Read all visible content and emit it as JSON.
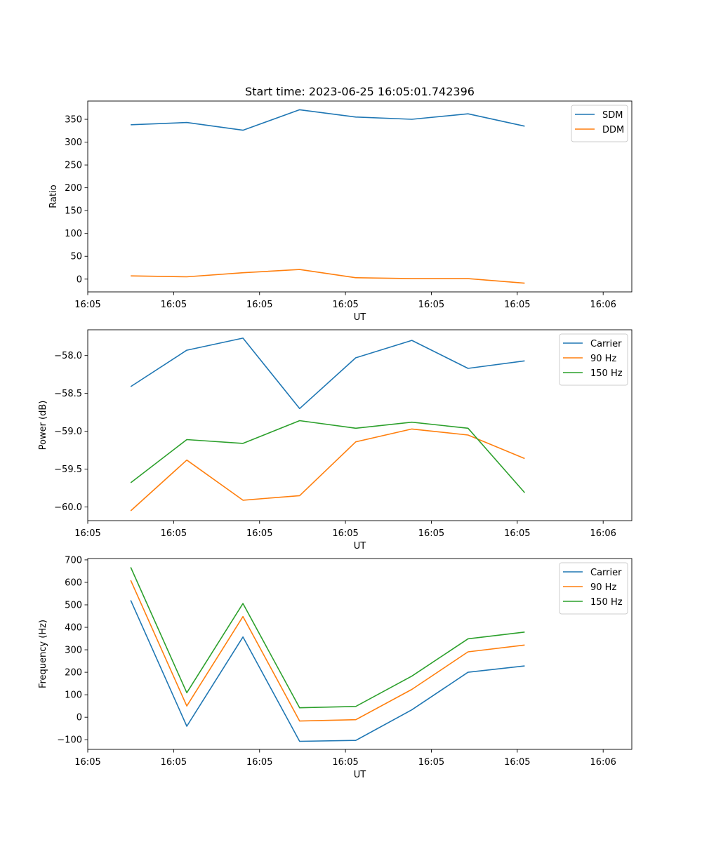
{
  "title": "Start time: 2023-06-25 16:05:01.742396",
  "colors": {
    "blue": "#1f77b4",
    "orange": "#ff7f0e",
    "green": "#2ca02c"
  },
  "chart_data": [
    {
      "type": "line",
      "xlabel": "UT",
      "ylabel": "Ratio",
      "xlim": [
        0,
        9.5
      ],
      "ylim": [
        -28,
        390
      ],
      "xtick_values": [
        0,
        1.5,
        3,
        4.5,
        6,
        7.5,
        9
      ],
      "xtick_labels": [
        "16:05",
        "16:05",
        "16:05",
        "16:05",
        "16:05",
        "16:05",
        "16:06"
      ],
      "ytick_values": [
        0,
        50,
        100,
        150,
        200,
        250,
        300,
        350
      ],
      "ytick_labels": [
        "0",
        "50",
        "100",
        "150",
        "200",
        "250",
        "300",
        "350"
      ],
      "x": [
        0.75,
        1.73,
        2.71,
        3.7,
        4.68,
        5.66,
        6.64,
        7.63
      ],
      "legend": "upper right",
      "series": [
        {
          "name": "SDM",
          "color": "#1f77b4",
          "values": [
            338,
            343,
            326,
            371,
            355,
            350,
            362,
            335
          ]
        },
        {
          "name": "DDM",
          "color": "#ff7f0e",
          "values": [
            7,
            5,
            14,
            21,
            3,
            1,
            1,
            -9
          ]
        }
      ]
    },
    {
      "type": "line",
      "xlabel": "UT",
      "ylabel": "Power (dB)",
      "xlim": [
        0,
        9.5
      ],
      "ylim": [
        -60.18,
        -57.66
      ],
      "xtick_values": [
        0,
        1.5,
        3,
        4.5,
        6,
        7.5,
        9
      ],
      "xtick_labels": [
        "16:05",
        "16:05",
        "16:05",
        "16:05",
        "16:05",
        "16:05",
        "16:06"
      ],
      "ytick_values": [
        -60.0,
        -59.5,
        -59.0,
        -58.5,
        -58.0
      ],
      "ytick_labels": [
        "−60.0",
        "−59.5",
        "−59.0",
        "−58.5",
        "−58.0"
      ],
      "x": [
        0.75,
        1.73,
        2.71,
        3.7,
        4.68,
        5.66,
        6.64,
        7.63
      ],
      "legend": "upper right",
      "series": [
        {
          "name": "Carrier",
          "color": "#1f77b4",
          "values": [
            -58.41,
            -57.93,
            -57.77,
            -58.7,
            -58.03,
            -57.8,
            -58.17,
            -58.07
          ]
        },
        {
          "name": "90 Hz",
          "color": "#ff7f0e",
          "values": [
            -60.05,
            -59.38,
            -59.91,
            -59.85,
            -59.14,
            -58.97,
            -59.05,
            -59.36
          ]
        },
        {
          "name": "150 Hz",
          "color": "#2ca02c",
          "values": [
            -59.68,
            -59.11,
            -59.16,
            -58.86,
            -58.96,
            -58.88,
            -58.96,
            -59.81
          ]
        }
      ]
    },
    {
      "type": "line",
      "xlabel": "UT",
      "ylabel": "Frequency (Hz)",
      "xlim": [
        0,
        9.5
      ],
      "ylim": [
        -143,
        706
      ],
      "xtick_values": [
        0,
        1.5,
        3,
        4.5,
        6,
        7.5,
        9
      ],
      "xtick_labels": [
        "16:05",
        "16:05",
        "16:05",
        "16:05",
        "16:05",
        "16:05",
        "16:06"
      ],
      "ytick_values": [
        -100,
        0,
        100,
        200,
        300,
        400,
        500,
        600,
        700
      ],
      "ytick_labels": [
        "−100",
        "0",
        "100",
        "200",
        "300",
        "400",
        "500",
        "600",
        "700"
      ],
      "x": [
        0.75,
        1.73,
        2.71,
        3.7,
        4.68,
        5.66,
        6.64,
        7.63
      ],
      "legend": "upper right",
      "series": [
        {
          "name": "Carrier",
          "color": "#1f77b4",
          "values": [
            520,
            -40,
            357,
            -107,
            -103,
            33,
            200,
            228
          ]
        },
        {
          "name": "90 Hz",
          "color": "#ff7f0e",
          "values": [
            609,
            50,
            448,
            -17,
            -11,
            124,
            291,
            321
          ]
        },
        {
          "name": "150 Hz",
          "color": "#2ca02c",
          "values": [
            667,
            109,
            506,
            42,
            48,
            183,
            349,
            379
          ]
        }
      ]
    }
  ]
}
